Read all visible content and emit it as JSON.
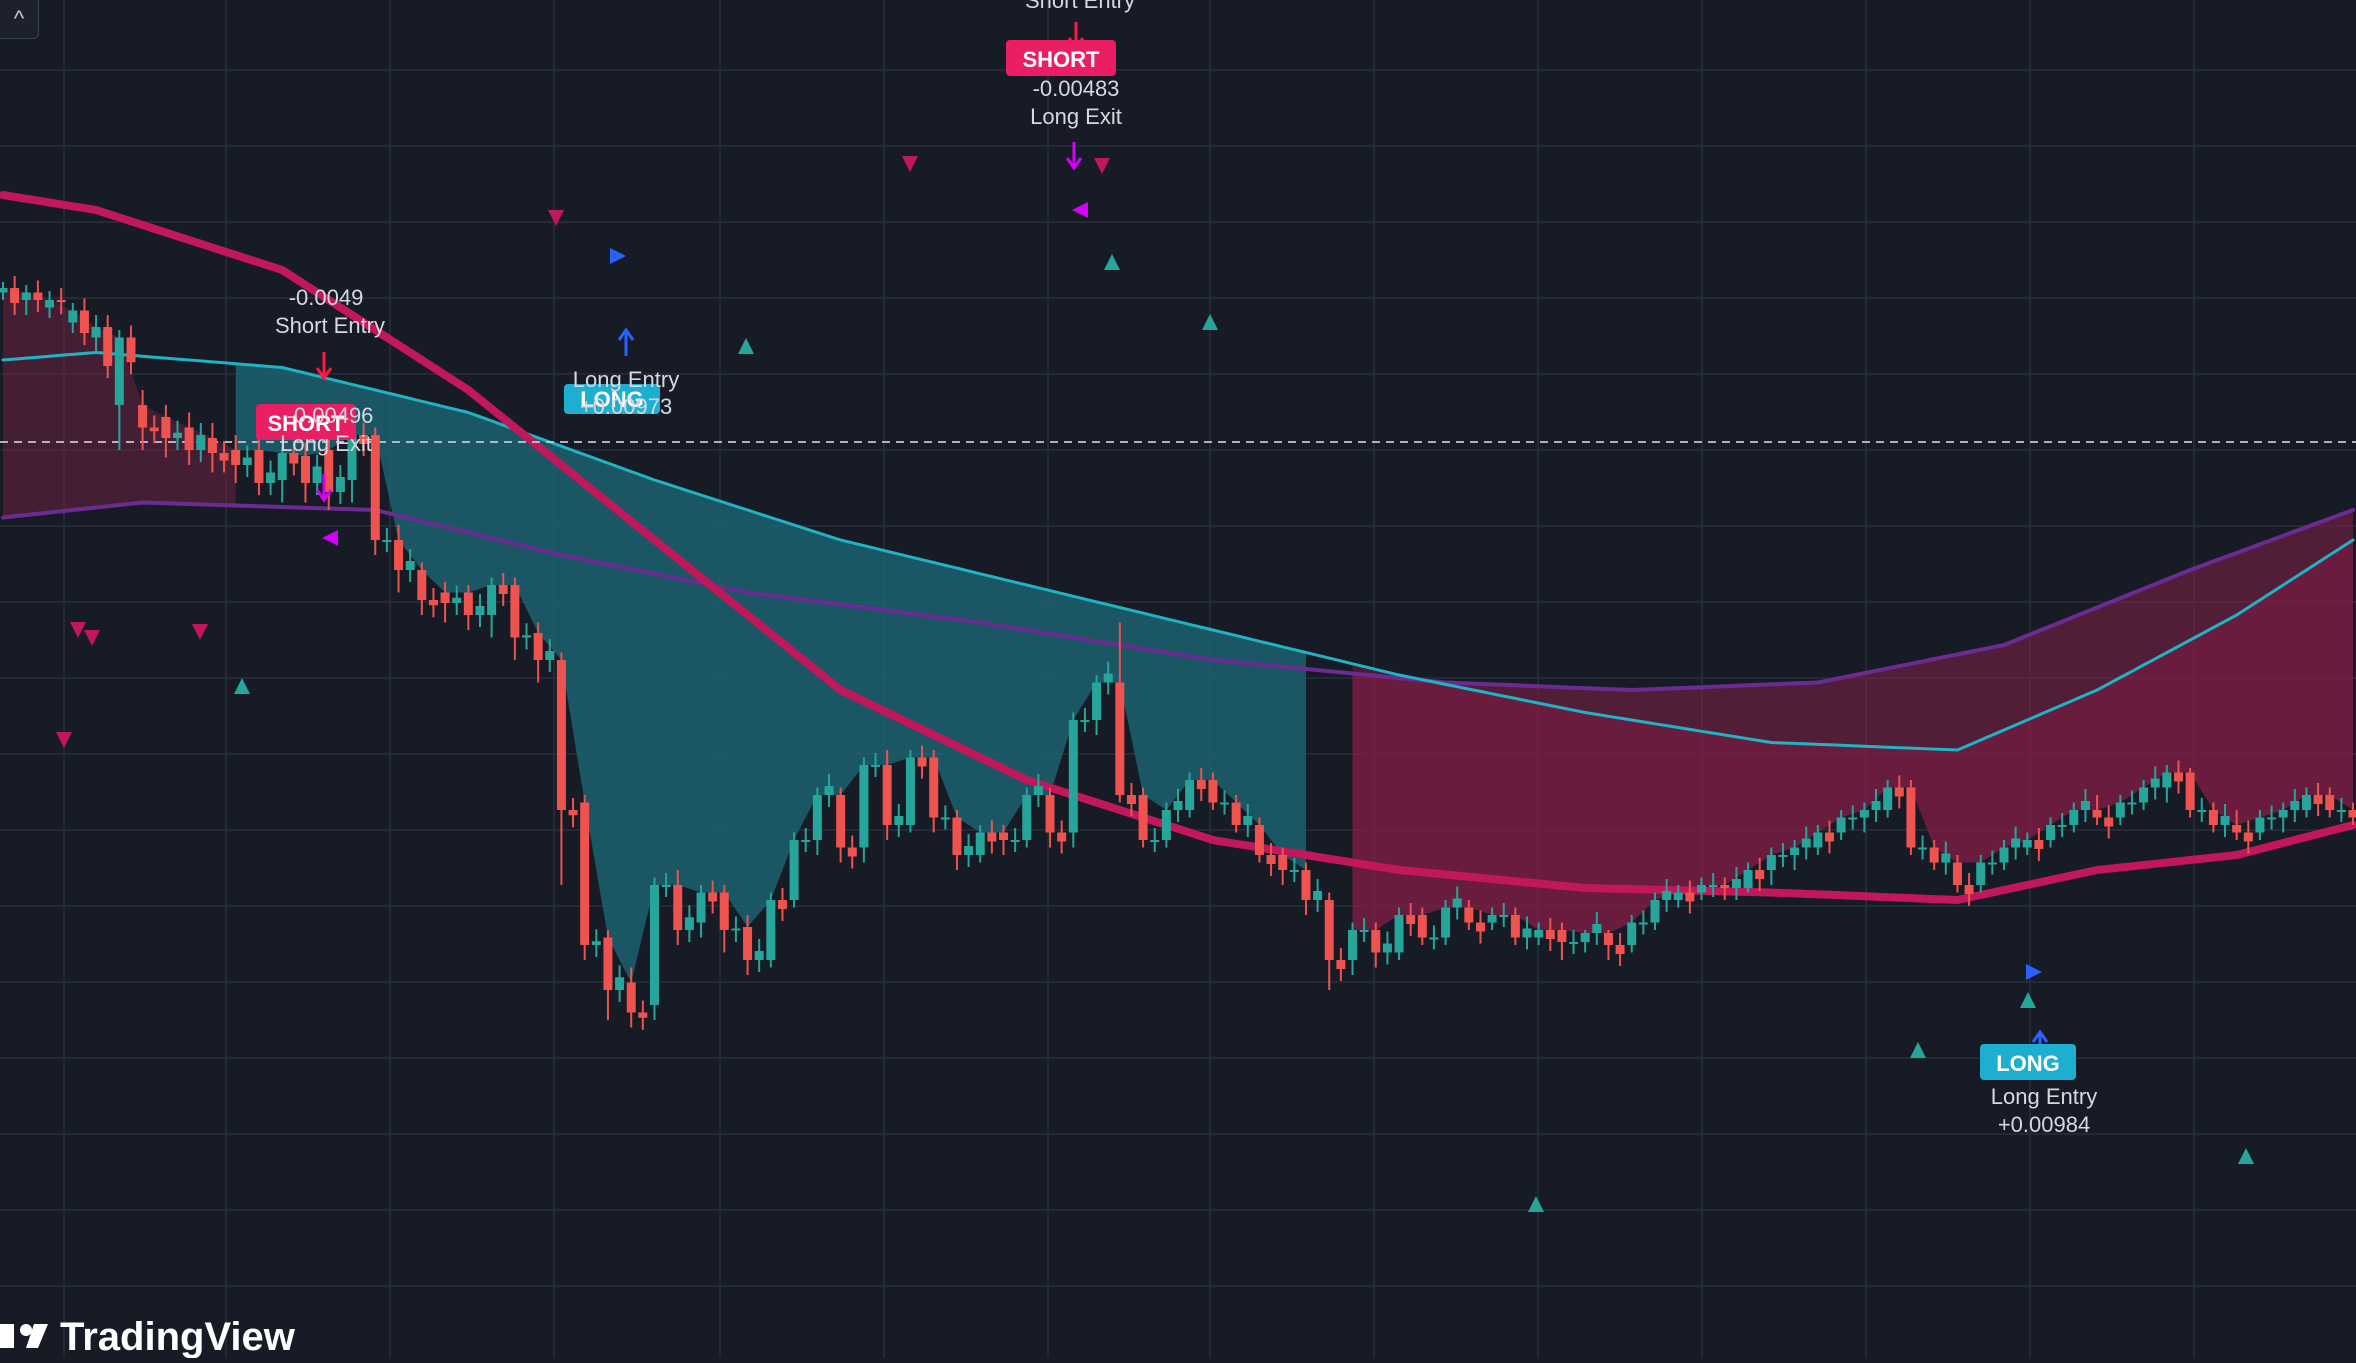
{
  "app": {
    "watermark": "TradingView",
    "collapse_glyph": "^"
  },
  "colors": {
    "background": "#161b25",
    "grid": "#232a36",
    "bull": "#26a69a",
    "bear": "#ef5350",
    "fast_ma": "#c2185b",
    "slow_ma": "#1ea0b8",
    "mid_ma": "#1fb3c4",
    "long_ma": "#6a2c91",
    "long_badge": "#1eaed0",
    "short_badge": "#e91e63",
    "exit_arrow": "#d500f9",
    "long_arrow": "#2962ff",
    "short_arrow": "#ff1744"
  },
  "chart_data": {
    "type": "candlestick",
    "x_axis": "bar index",
    "ohlc_seed": [
      [
        0,
        545,
        548,
        540,
        552
      ],
      [
        10,
        540,
        545,
        530,
        550
      ],
      [
        20,
        535,
        540,
        528,
        546
      ],
      [
        30,
        525,
        533,
        518,
        538
      ],
      [
        40,
        515,
        522,
        505,
        530
      ],
      [
        50,
        470,
        515,
        440,
        520
      ],
      [
        60,
        470,
        455,
        440,
        480
      ],
      [
        70,
        462,
        448,
        435,
        470
      ],
      [
        80,
        455,
        440,
        430,
        465
      ],
      [
        90,
        448,
        438,
        425,
        458
      ],
      [
        100,
        440,
        430,
        418,
        450
      ],
      [
        110,
        440,
        418,
        410,
        450
      ],
      [
        120,
        420,
        438,
        405,
        442
      ],
      [
        130,
        436,
        418,
        405,
        445
      ],
      [
        140,
        440,
        412,
        400,
        450
      ],
      [
        150,
        420,
        450,
        405,
        458
      ],
      [
        160,
        450,
        380,
        370,
        455
      ],
      [
        170,
        380,
        360,
        345,
        390
      ],
      [
        180,
        360,
        340,
        330,
        365
      ],
      [
        190,
        345,
        338,
        325,
        352
      ],
      [
        200,
        345,
        330,
        320,
        350
      ],
      [
        210,
        330,
        350,
        315,
        355
      ],
      [
        220,
        350,
        315,
        300,
        355
      ],
      [
        230,
        318,
        300,
        285,
        325
      ],
      [
        240,
        300,
        200,
        150,
        305
      ],
      [
        250,
        205,
        110,
        100,
        210
      ],
      [
        260,
        115,
        80,
        60,
        120
      ],
      [
        270,
        85,
        65,
        55,
        95
      ],
      [
        280,
        70,
        150,
        60,
        155
      ],
      [
        290,
        150,
        120,
        110,
        160
      ],
      [
        300,
        125,
        145,
        115,
        150
      ],
      [
        310,
        145,
        120,
        105,
        150
      ],
      [
        320,
        122,
        100,
        90,
        130
      ],
      [
        330,
        100,
        140,
        95,
        145
      ],
      [
        340,
        140,
        180,
        135,
        185
      ],
      [
        350,
        180,
        210,
        170,
        215
      ],
      [
        360,
        210,
        175,
        165,
        215
      ],
      [
        370,
        175,
        230,
        165,
        235
      ],
      [
        380,
        230,
        190,
        180,
        240
      ],
      [
        390,
        190,
        235,
        185,
        240
      ],
      [
        400,
        235,
        195,
        185,
        240
      ],
      [
        410,
        195,
        170,
        160,
        200
      ],
      [
        420,
        170,
        185,
        165,
        190
      ],
      [
        430,
        185,
        180,
        170,
        190
      ],
      [
        440,
        180,
        210,
        175,
        215
      ],
      [
        450,
        210,
        185,
        175,
        215
      ],
      [
        460,
        185,
        260,
        175,
        265
      ],
      [
        470,
        260,
        285,
        250,
        290
      ],
      [
        480,
        285,
        210,
        205,
        325
      ],
      [
        490,
        210,
        180,
        175,
        215
      ],
      [
        500,
        180,
        200,
        175,
        205
      ],
      [
        510,
        200,
        220,
        195,
        225
      ],
      [
        520,
        220,
        205,
        200,
        225
      ],
      [
        530,
        205,
        190,
        185,
        210
      ],
      [
        540,
        190,
        170,
        165,
        195
      ],
      [
        550,
        170,
        160,
        150,
        175
      ],
      [
        560,
        160,
        140,
        130,
        165
      ],
      [
        570,
        140,
        100,
        80,
        145
      ],
      [
        580,
        100,
        120,
        90,
        125
      ],
      [
        590,
        120,
        105,
        95,
        125
      ],
      [
        600,
        105,
        130,
        100,
        135
      ],
      [
        610,
        130,
        115,
        110,
        135
      ],
      [
        620,
        115,
        135,
        110,
        140
      ],
      [
        630,
        135,
        125,
        120,
        140
      ],
      [
        640,
        125,
        130,
        120,
        135
      ],
      [
        650,
        130,
        115,
        110,
        135
      ],
      [
        660,
        115,
        120,
        110,
        125
      ],
      [
        670,
        120,
        112,
        100,
        125
      ],
      [
        680,
        112,
        118,
        105,
        120
      ],
      [
        690,
        118,
        110,
        100,
        120
      ],
      [
        700,
        110,
        125,
        105,
        130
      ],
      [
        710,
        125,
        140,
        120,
        145
      ],
      [
        720,
        140,
        145,
        135,
        150
      ],
      [
        730,
        145,
        150,
        140,
        155
      ],
      [
        740,
        150,
        148,
        140,
        155
      ],
      [
        750,
        148,
        160,
        145,
        165
      ],
      [
        760,
        160,
        170,
        150,
        175
      ],
      [
        770,
        170,
        175,
        160,
        180
      ],
      [
        780,
        175,
        185,
        170,
        190
      ],
      [
        790,
        185,
        195,
        180,
        200
      ],
      [
        800,
        195,
        200,
        185,
        205
      ],
      [
        810,
        200,
        215,
        195,
        220
      ],
      [
        820,
        215,
        175,
        170,
        220
      ],
      [
        830,
        175,
        165,
        160,
        180
      ],
      [
        840,
        165,
        150,
        145,
        170
      ],
      [
        850,
        150,
        165,
        145,
        170
      ],
      [
        860,
        165,
        175,
        160,
        180
      ],
      [
        870,
        175,
        180,
        170,
        185
      ],
      [
        880,
        180,
        190,
        175,
        195
      ],
      [
        890,
        190,
        200,
        185,
        205
      ],
      [
        900,
        200,
        195,
        190,
        210
      ],
      [
        910,
        195,
        205,
        190,
        210
      ],
      [
        920,
        205,
        215,
        200,
        220
      ],
      [
        930,
        215,
        225,
        205,
        230
      ],
      [
        940,
        225,
        200,
        195,
        228
      ],
      [
        950,
        200,
        190,
        185,
        205
      ],
      [
        960,
        190,
        185,
        180,
        200
      ],
      [
        970,
        185,
        195,
        180,
        200
      ],
      [
        980,
        195,
        200,
        185,
        205
      ],
      [
        990,
        200,
        210,
        195,
        215
      ],
      [
        1000,
        210,
        200,
        195,
        215
      ],
      [
        1010,
        200,
        195,
        190,
        205
      ]
    ],
    "fast_ma": [
      [
        0,
        610
      ],
      [
        40,
        600
      ],
      [
        120,
        560
      ],
      [
        200,
        480
      ],
      [
        280,
        380
      ],
      [
        360,
        280
      ],
      [
        440,
        220
      ],
      [
        520,
        180
      ],
      [
        600,
        160
      ],
      [
        680,
        148
      ],
      [
        760,
        145
      ],
      [
        840,
        140
      ],
      [
        900,
        160
      ],
      [
        960,
        170
      ],
      [
        1010,
        190
      ]
    ],
    "slow_ma": [
      [
        0,
        500
      ],
      [
        40,
        505
      ],
      [
        120,
        495
      ],
      [
        200,
        465
      ],
      [
        280,
        420
      ],
      [
        360,
        380
      ],
      [
        440,
        350
      ],
      [
        520,
        320
      ],
      [
        600,
        290
      ],
      [
        680,
        265
      ],
      [
        760,
        245
      ],
      [
        840,
        240
      ],
      [
        900,
        280
      ],
      [
        960,
        330
      ],
      [
        1010,
        380
      ]
    ],
    "long_ma": [
      [
        0,
        395
      ],
      [
        60,
        405
      ],
      [
        160,
        400
      ],
      [
        240,
        370
      ],
      [
        320,
        345
      ],
      [
        420,
        325
      ],
      [
        520,
        300
      ],
      [
        620,
        285
      ],
      [
        700,
        280
      ],
      [
        780,
        285
      ],
      [
        860,
        310
      ],
      [
        940,
        360
      ],
      [
        1010,
        400
      ]
    ],
    "signals": [
      {
        "kind": "short",
        "text_top": "-0.0049",
        "text_bottom": "Short Entry",
        "bar": 140
      },
      {
        "kind": "exit",
        "text_top": "-0.00496",
        "text_bottom": "Long Exit",
        "bar": 140
      },
      {
        "kind": "long",
        "text_top": "Long Entry",
        "text_bottom": "+0.00973",
        "bar": 265
      },
      {
        "kind": "short",
        "text_top": "-0.00483",
        "text_bottom": "Long Exit",
        "bar": 460
      },
      {
        "kind": "long",
        "text_top": "Long Entry",
        "text_bottom": "+0.00984",
        "bar": 870
      }
    ]
  },
  "labels": {
    "short_badge": "SHORT",
    "long_badge": "LONG",
    "short_entry_top": "Short Entry",
    "sig1_value": "-0.0049",
    "sig1_text": "Short Entry",
    "sig2_value": "-0.00496",
    "sig2_text": "Long Exit",
    "sig3_text": "Long Entry",
    "sig3_value": "+0.00973",
    "sig4_value": "-0.00483",
    "sig4_text": "Long Exit",
    "sig5_text": "Long Entry",
    "sig5_value": "+0.00984"
  }
}
